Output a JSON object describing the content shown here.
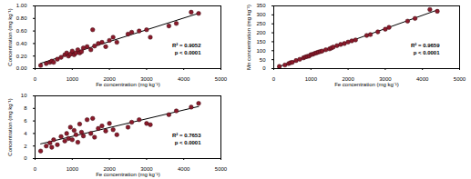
{
  "chart_data": [
    {
      "type": "scatter",
      "xlabel": "Fe concentration (mg kg⁻¹)",
      "ylabel": "Concentration (mg kg⁻¹)",
      "x": [
        150,
        300,
        400,
        450,
        500,
        600,
        700,
        800,
        850,
        900,
        950,
        1000,
        1050,
        1100,
        1150,
        1200,
        1250,
        1300,
        1400,
        1500,
        1550,
        1600,
        1700,
        1800,
        1900,
        2000,
        2100,
        2200,
        2500,
        2600,
        2800,
        3000,
        3100,
        3600,
        3800,
        4200,
        4400
      ],
      "values": [
        0.05,
        0.08,
        0.1,
        0.12,
        0.1,
        0.15,
        0.18,
        0.22,
        0.25,
        0.2,
        0.23,
        0.28,
        0.22,
        0.25,
        0.3,
        0.25,
        0.27,
        0.33,
        0.35,
        0.3,
        0.62,
        0.36,
        0.4,
        0.42,
        0.35,
        0.45,
        0.5,
        0.42,
        0.55,
        0.58,
        0.6,
        0.62,
        0.5,
        0.68,
        0.72,
        0.9,
        0.88
      ],
      "color": "#8b1a2b",
      "marker": "circle",
      "xlim": [
        0,
        5000
      ],
      "xticks": [
        0,
        1000,
        2000,
        3000,
        4000,
        5000
      ],
      "ylim": [
        0,
        1
      ],
      "yticks": [
        {
          "value": 0,
          "label": "0.00"
        },
        {
          "value": 0.2,
          "label": "0.20"
        },
        {
          "value": 0.4,
          "label": "0.40"
        },
        {
          "value": 0.6,
          "label": "0.60"
        },
        {
          "value": 0.8,
          "label": "0.80"
        },
        {
          "value": 1,
          "label": "1.00"
        }
      ],
      "annotations": [
        "R² = 0.9052",
        "p < 0.0001"
      ]
    },
    {
      "type": "scatter",
      "xlabel": "Fe concentration (mg kg⁻¹)",
      "ylabel": "Mn concentration (mg kg⁻¹)",
      "x": [
        150,
        300,
        400,
        450,
        500,
        600,
        700,
        800,
        850,
        900,
        950,
        1000,
        1050,
        1100,
        1150,
        1200,
        1250,
        1300,
        1400,
        1500,
        1550,
        1600,
        1700,
        1800,
        1900,
        2000,
        2100,
        2200,
        2500,
        2600,
        2800,
        3000,
        3100,
        3600,
        3800,
        4200,
        4400
      ],
      "values": [
        12,
        20,
        28,
        33,
        35,
        45,
        52,
        60,
        65,
        68,
        70,
        78,
        80,
        85,
        88,
        92,
        95,
        98,
        105,
        110,
        115,
        120,
        128,
        135,
        140,
        148,
        155,
        160,
        185,
        190,
        205,
        220,
        230,
        265,
        280,
        330,
        320
      ],
      "color": "#8b1a2b",
      "marker": "circle",
      "xlim": [
        0,
        5000
      ],
      "xticks": [
        0,
        1000,
        2000,
        3000,
        4000,
        5000
      ],
      "ylim": [
        0,
        350
      ],
      "yticks": [
        0,
        50,
        100,
        150,
        200,
        250,
        300,
        350
      ],
      "annotations": [
        "R² = 0.9659",
        "p < 0.0001"
      ]
    },
    {
      "type": "scatter",
      "xlabel": "Fe concentration (mg kg⁻¹)",
      "ylabel": "Concentration (mg kg⁻¹)",
      "x": [
        150,
        300,
        400,
        450,
        500,
        600,
        700,
        800,
        850,
        900,
        950,
        1000,
        1050,
        1100,
        1150,
        1200,
        1250,
        1300,
        1400,
        1500,
        1550,
        1600,
        1700,
        1800,
        1900,
        2000,
        2100,
        2200,
        2500,
        2600,
        2800,
        3000,
        3100,
        3600,
        3800,
        4200,
        4400
      ],
      "values": [
        1.2,
        2.0,
        2.5,
        1.8,
        3.0,
        2.2,
        3.5,
        2.8,
        4.0,
        3.2,
        5.0,
        3.0,
        4.5,
        3.8,
        2.6,
        5.5,
        4.2,
        3.6,
        6.2,
        4.0,
        6.4,
        3.4,
        4.8,
        5.2,
        4.4,
        5.6,
        4.6,
        3.8,
        5.0,
        5.8,
        6.2,
        5.6,
        5.4,
        7.0,
        7.6,
        8.2,
        8.8
      ],
      "color": "#8b1a2b",
      "marker": "circle",
      "xlim": [
        0,
        5000
      ],
      "xticks": [
        0,
        1000,
        2000,
        3000,
        4000,
        5000
      ],
      "ylim": [
        0,
        10
      ],
      "yticks": [
        0,
        2,
        4,
        6,
        8,
        10
      ],
      "annotations": [
        "R² = 0.7653",
        "p < 0.0001"
      ]
    }
  ]
}
